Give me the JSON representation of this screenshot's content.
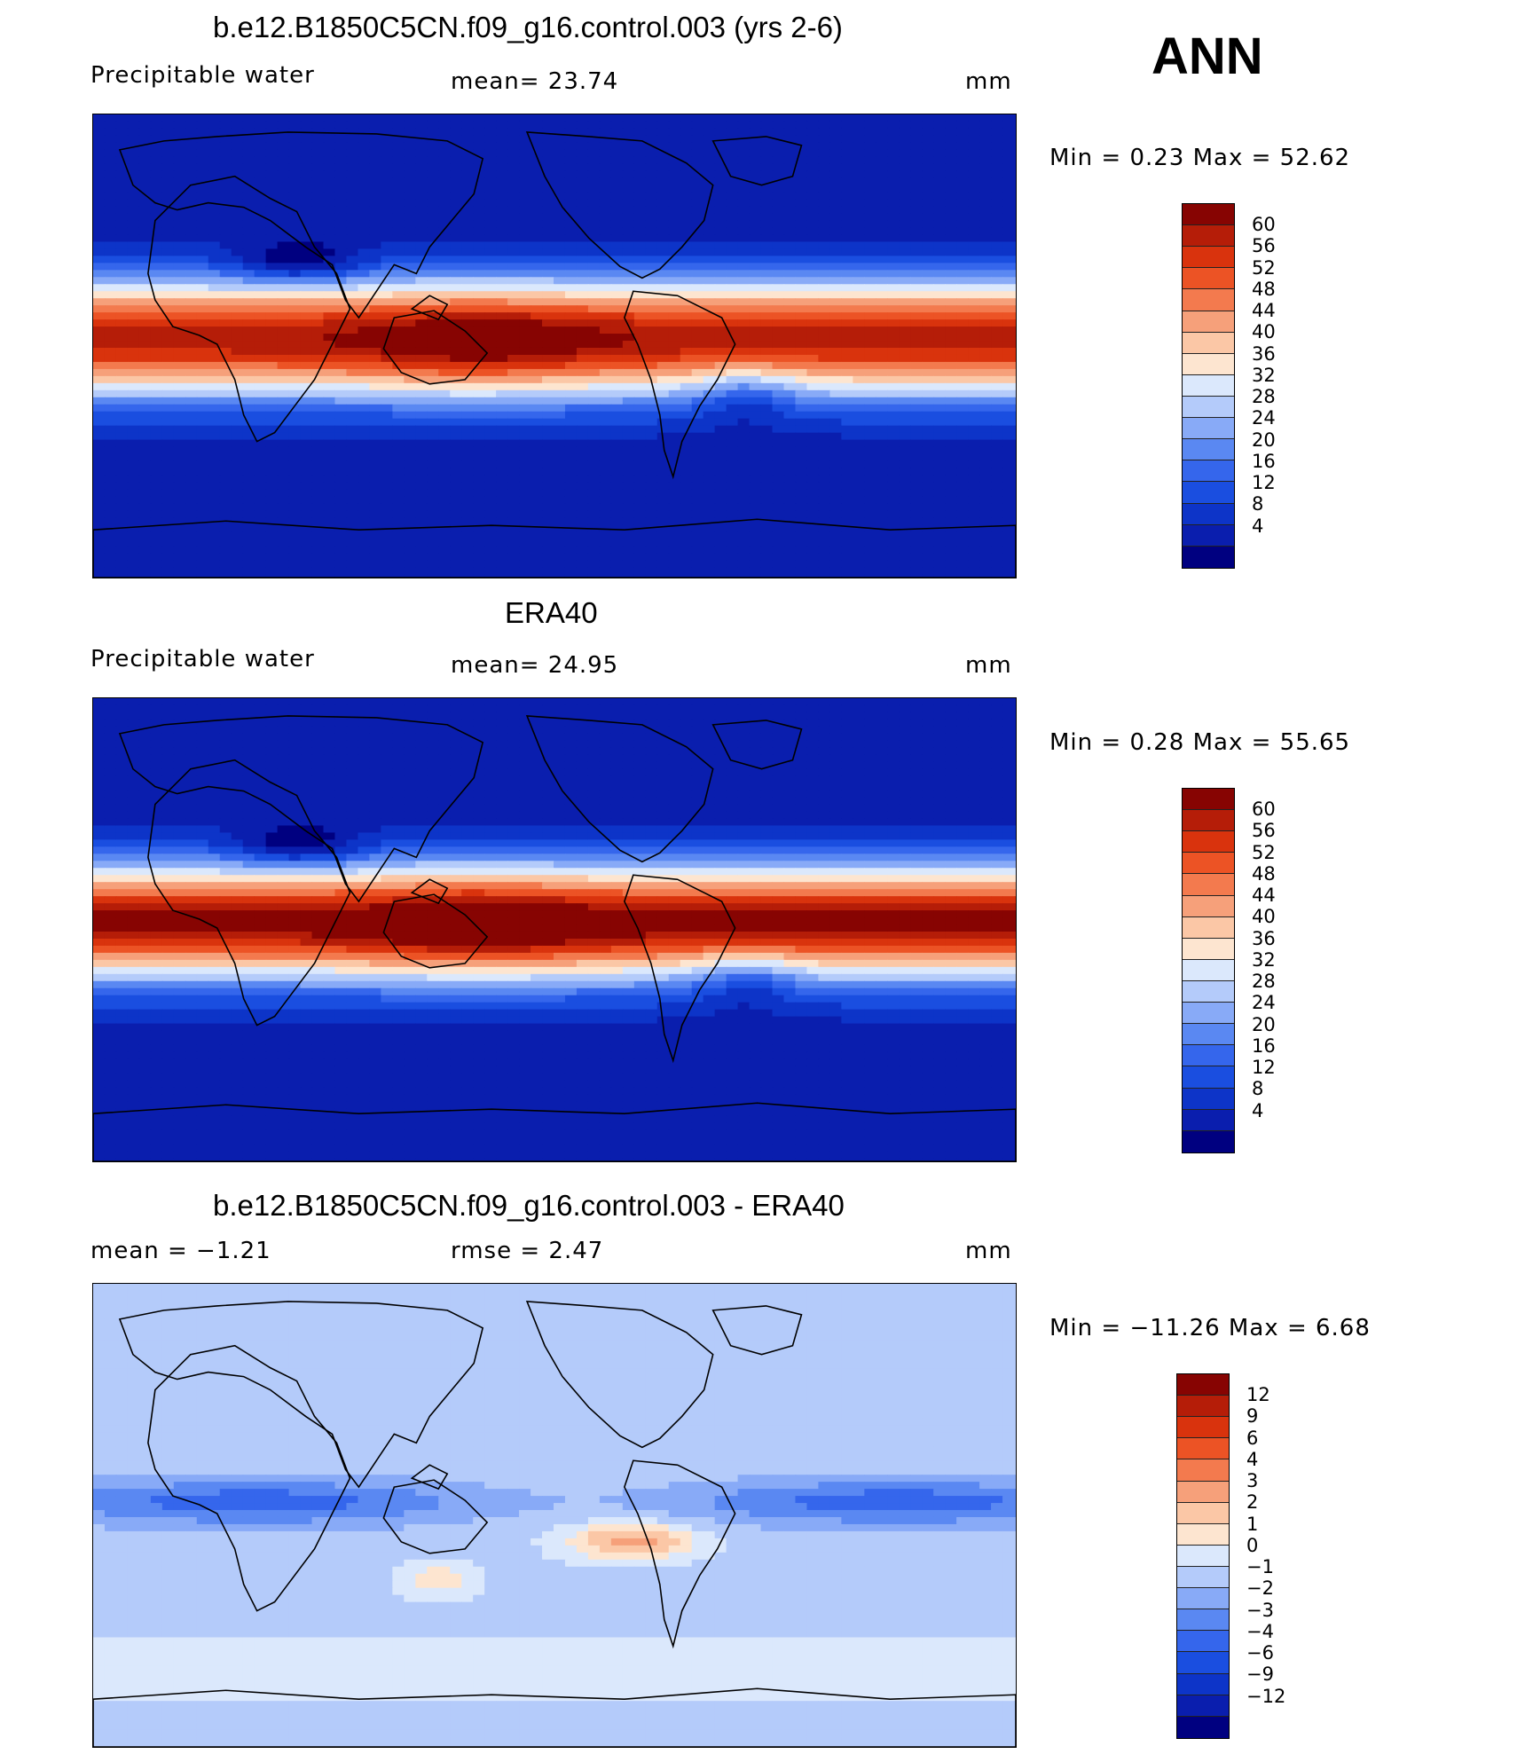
{
  "season": "ANN",
  "colors": {
    "scale": [
      "#000080",
      "#0a1eae",
      "#0d34c8",
      "#1a4ee0",
      "#3566ec",
      "#5a88f2",
      "#88aaf7",
      "#b4cbfa",
      "#dbe8fc",
      "#fde5d0",
      "#fbc7a6",
      "#f6a07a",
      "#f37a4e",
      "#ec5325",
      "#d9330d",
      "#b51d08",
      "#870402"
    ],
    "diff": [
      "#000080",
      "#0a1eae",
      "#0d34c8",
      "#1a4ee0",
      "#3566ec",
      "#5a88f2",
      "#88aaf7",
      "#b4cbfa",
      "#dbe8fc",
      "#fde5d0",
      "#fbc7a6",
      "#f6a07a",
      "#f37a4e",
      "#ec5325",
      "#d9330d",
      "#b51d08",
      "#870402"
    ],
    "land_outline": "#000000"
  },
  "panels": [
    {
      "id": "model",
      "title": "b.e12.B1850C5CN.f09_g16.control.003 (yrs 2-6)",
      "left_label": "Precipitable  water",
      "center_label": "mean=   23.74",
      "units": "mm",
      "min_max": "Min  =     0.23  Max  =    52.62",
      "colorbar_ticks": [
        "60",
        "56",
        "52",
        "48",
        "44",
        "40",
        "36",
        "32",
        "28",
        "24",
        "20",
        "16",
        "12",
        "8",
        "4"
      ]
    },
    {
      "id": "obs",
      "title": "ERA40",
      "left_label": "Precipitable  water",
      "center_label": "mean=   24.95",
      "units": "mm",
      "min_max": "Min  =     0.28  Max  =    55.65",
      "colorbar_ticks": [
        "60",
        "56",
        "52",
        "48",
        "44",
        "40",
        "36",
        "32",
        "28",
        "24",
        "20",
        "16",
        "12",
        "8",
        "4"
      ]
    },
    {
      "id": "diff",
      "title": "b.e12.B1850C5CN.f09_g16.control.003 - ERA40",
      "left_label": "mean  =    −1.21",
      "center_label": "rmse  =     2.47",
      "units": "mm",
      "min_max": "Min  =  −11.26  Max  =     6.68",
      "colorbar_ticks": [
        "12",
        "9",
        "6",
        "4",
        "3",
        "2",
        "1",
        "0",
        "−1",
        "−2",
        "−3",
        "−4",
        "−6",
        "−9",
        "−12"
      ]
    }
  ]
}
